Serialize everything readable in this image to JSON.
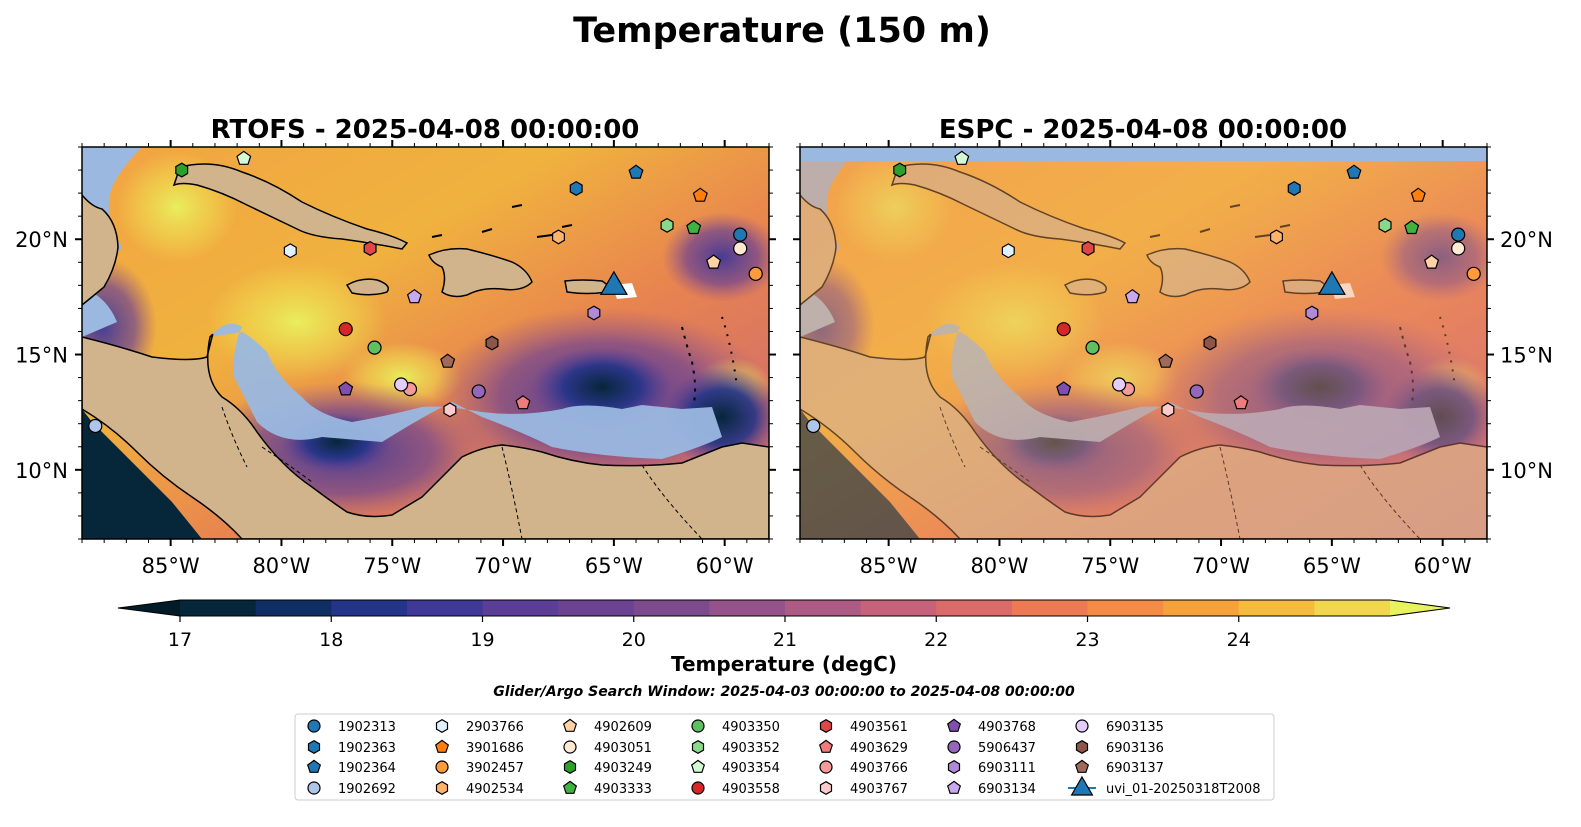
{
  "suptitle": "Temperature (150 m)",
  "panels": [
    {
      "id": "rtofs",
      "title": "RTOFS - 2025-04-08 00:00:00"
    },
    {
      "id": "espc",
      "title": "ESPC - 2025-04-08 00:00:00"
    }
  ],
  "colorbar": {
    "label": "Temperature (degC)",
    "ticks": [
      "17",
      "18",
      "19",
      "20",
      "21",
      "22",
      "23",
      "24"
    ],
    "levels": [
      17.0,
      17.5,
      18.0,
      18.5,
      19.0,
      19.5,
      20.0,
      20.5,
      21.0,
      21.5,
      22.0,
      22.5,
      23.0,
      23.5,
      24.0,
      24.5
    ],
    "colors": [
      "#06263a",
      "#0f2e63",
      "#243488",
      "#3f3896",
      "#5a3e98",
      "#6c4393",
      "#7e4a8e",
      "#96528b",
      "#ad5b85",
      "#c6637a",
      "#db6b6b",
      "#ec7a55",
      "#f48c45",
      "#f6a23b",
      "#f4bb3c",
      "#f0d74e"
    ],
    "over_color": "#e8f25f",
    "under_color": "#031b29"
  },
  "search_window": "Glider/Argo Search Window: 2025-04-03 00:00:00 to 2025-04-08 00:00:00",
  "colors": {
    "land": "#d2b48c",
    "shelf": "#9ab8e0",
    "deep_cold": "#06263a",
    "glider": "#1f77b4"
  },
  "chart_data": {
    "type": "scatter",
    "extent": {
      "lon": [
        -89,
        -58
      ],
      "lat": [
        7,
        24
      ]
    },
    "x_ticks": [
      -85,
      -80,
      -75,
      -70,
      -65,
      -60
    ],
    "x_tick_labels": [
      "85°W",
      "80°W",
      "75°W",
      "70°W",
      "65°W",
      "60°W"
    ],
    "y_ticks": [
      10,
      15,
      20
    ],
    "y_tick_labels": [
      "10°N",
      "15°N",
      "20°N"
    ],
    "floats": [
      {
        "name": "1902313",
        "marker": "circle",
        "color": "#1f77b4",
        "lon": -59.3,
        "lat": 20.2
      },
      {
        "name": "1902363",
        "marker": "hexagon",
        "color": "#1f77b4",
        "lon": -66.7,
        "lat": 22.2
      },
      {
        "name": "1902364",
        "marker": "pentagon",
        "color": "#1f77b4",
        "lon": -64.0,
        "lat": 22.9
      },
      {
        "name": "1902692",
        "marker": "circle",
        "color": "#aec7e8",
        "lon": -88.4,
        "lat": 11.9
      },
      {
        "name": "2903766",
        "marker": "hexagon",
        "color": "#e0f0ff",
        "lon": -79.6,
        "lat": 19.5
      },
      {
        "name": "3901686",
        "marker": "pentagon",
        "color": "#ff7f0e",
        "lon": -61.1,
        "lat": 21.9
      },
      {
        "name": "3902457",
        "marker": "circle",
        "color": "#ff9b3a",
        "lon": -58.6,
        "lat": 18.5
      },
      {
        "name": "4902534",
        "marker": "hexagon",
        "color": "#ffb36b",
        "lon": -67.5,
        "lat": 20.1
      },
      {
        "name": "4902609",
        "marker": "pentagon",
        "color": "#ffd3a5",
        "lon": -60.5,
        "lat": 19.0
      },
      {
        "name": "4903051",
        "marker": "circle",
        "color": "#ffe9d2",
        "lon": -59.3,
        "lat": 19.6
      },
      {
        "name": "4903249",
        "marker": "hexagon",
        "color": "#2ca02c",
        "lon": -84.5,
        "lat": 23.0
      },
      {
        "name": "4903333",
        "marker": "pentagon",
        "color": "#3fb23f",
        "lon": -61.4,
        "lat": 20.5
      },
      {
        "name": "4903350",
        "marker": "circle",
        "color": "#5ec05e",
        "lon": -75.8,
        "lat": 15.3
      },
      {
        "name": "4903352",
        "marker": "hexagon",
        "color": "#8ad88a",
        "lon": -62.6,
        "lat": 20.6
      },
      {
        "name": "4903354",
        "marker": "pentagon",
        "color": "#d4f7d4",
        "lon": -81.7,
        "lat": 23.5
      },
      {
        "name": "4903558",
        "marker": "circle",
        "color": "#d62728",
        "lon": -77.1,
        "lat": 16.1
      },
      {
        "name": "4903561",
        "marker": "hexagon",
        "color": "#e04647",
        "lon": -76.0,
        "lat": 19.6
      },
      {
        "name": "4903629",
        "marker": "pentagon",
        "color": "#ef7b7c",
        "lon": -69.1,
        "lat": 12.9
      },
      {
        "name": "4903766",
        "marker": "circle",
        "color": "#f59a9b",
        "lon": -74.2,
        "lat": 13.5
      },
      {
        "name": "4903767",
        "marker": "hexagon",
        "color": "#fbcaca",
        "lon": -72.4,
        "lat": 12.6
      },
      {
        "name": "4903768",
        "marker": "pentagon",
        "color": "#7f4fb0",
        "lon": -77.1,
        "lat": 13.5
      },
      {
        "name": "5906437",
        "marker": "circle",
        "color": "#9467bd",
        "lon": -71.1,
        "lat": 13.4
      },
      {
        "name": "6903111",
        "marker": "hexagon",
        "color": "#b08ad6",
        "lon": -65.9,
        "lat": 16.8
      },
      {
        "name": "6903134",
        "marker": "pentagon",
        "color": "#c9a8f0",
        "lon": -74.0,
        "lat": 17.5
      },
      {
        "name": "6903135",
        "marker": "circle",
        "color": "#e5cdf9",
        "lon": -74.6,
        "lat": 13.7
      },
      {
        "name": "6903136",
        "marker": "hexagon",
        "color": "#8c564b",
        "lon": -70.5,
        "lat": 15.5
      },
      {
        "name": "6903137",
        "marker": "pentagon",
        "color": "#a06a5b",
        "lon": -72.5,
        "lat": 14.7
      }
    ],
    "glider": {
      "name": "uvi_01-20250318T2008",
      "marker": "triangle",
      "color": "#1f77b4",
      "lon": -65.0,
      "lat": 18.1
    }
  }
}
